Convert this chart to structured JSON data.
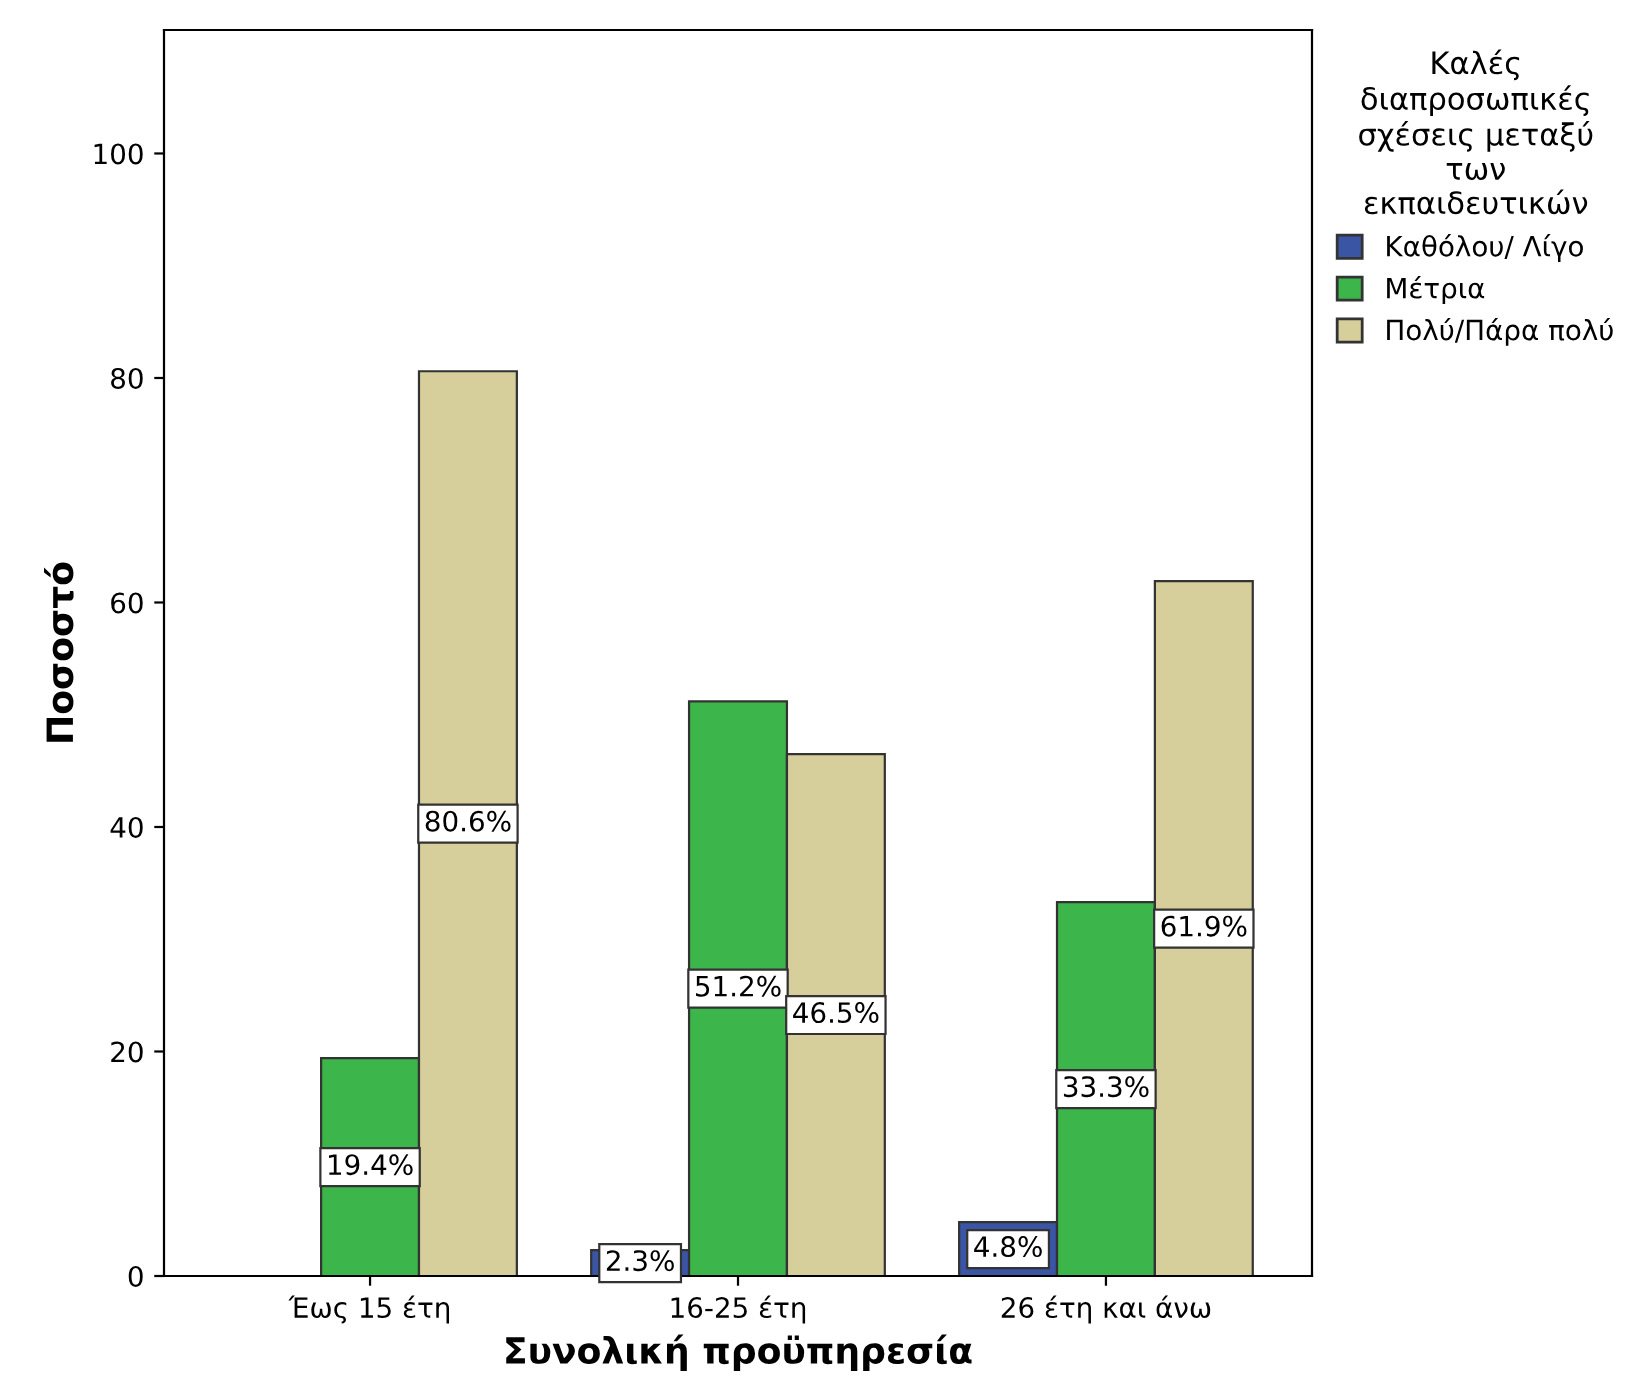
{
  "chart_data": {
    "type": "bar",
    "xlabel": "Συνολική προϋπηρεσία",
    "ylabel": "Ποσοστό",
    "legend_title": "Καλές\nδιαπροσωπικές\nσχέσεις μεταξύ\nτων\nεκπαιδευτικών",
    "categories": [
      "Έως 15 έτη",
      "16-25 έτη",
      "26 έτη και άνω"
    ],
    "series": [
      {
        "name": "Καθόλου/ Λίγο",
        "color": "#3a55a4",
        "values": [
          null,
          2.3,
          4.8
        ],
        "value_labels": [
          null,
          "2.3%",
          "4.8%"
        ]
      },
      {
        "name": "Μέτρια",
        "color": "#3cb64a",
        "values": [
          19.4,
          51.2,
          33.3
        ],
        "value_labels": [
          "19.4%",
          "51.2%",
          "33.3%"
        ]
      },
      {
        "name": "Πολύ/Πάρα πολύ",
        "color": "#d6cf9b",
        "values": [
          80.6,
          46.5,
          61.9
        ],
        "value_labels": [
          "80.6%",
          "46.5%",
          "61.9%"
        ]
      }
    ],
    "ylim": [
      0,
      111
    ],
    "yticks": [
      0,
      20,
      40,
      60,
      80,
      100
    ],
    "grid": false,
    "legend": "right"
  }
}
